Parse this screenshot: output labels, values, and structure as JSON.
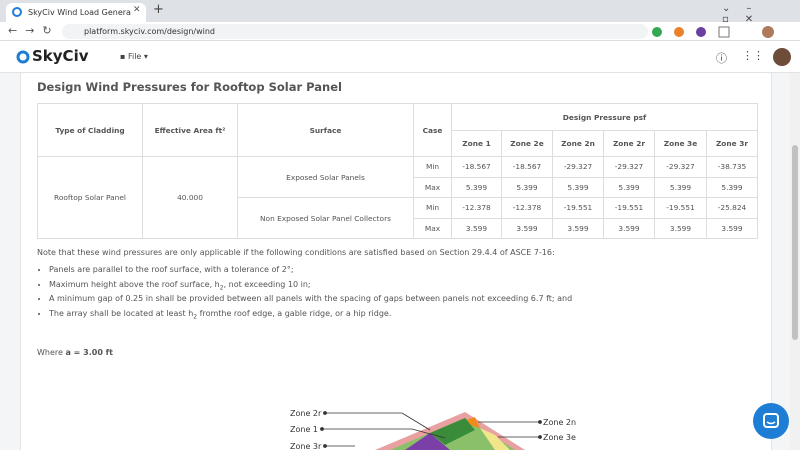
{
  "browser": {
    "tab_title": "SkyCiv Wind Load Genera",
    "url": "platform.skyciv.com/design/wind"
  },
  "app": {
    "logo": "SkyCiv",
    "menu": "File"
  },
  "section": {
    "title": "Design Wind Pressures for Rooftop Solar Panel"
  },
  "table": {
    "headers": {
      "type": "Type of Cladding",
      "area": "Effective Area ft²",
      "surface": "Surface",
      "case": "Case",
      "group": "Design Pressure psf",
      "zones": [
        "Zone 1",
        "Zone 2e",
        "Zone 2n",
        "Zone 2r",
        "Zone 3e",
        "Zone 3r"
      ]
    },
    "cladding": "Rooftop Solar Panel",
    "area": "40.000",
    "surfaces": [
      {
        "name": "Exposed Solar Panels",
        "rows": [
          {
            "case": "Min",
            "values": [
              "-18.567",
              "-18.567",
              "-29.327",
              "-29.327",
              "-29.327",
              "-38.735"
            ]
          },
          {
            "case": "Max",
            "values": [
              "5.399",
              "5.399",
              "5.399",
              "5.399",
              "5.399",
              "5.399"
            ]
          }
        ]
      },
      {
        "name": "Non Exposed Solar Panel Collectors",
        "rows": [
          {
            "case": "Min",
            "values": [
              "-12.378",
              "-12.378",
              "-19.551",
              "-19.551",
              "-19.551",
              "-25.824"
            ]
          },
          {
            "case": "Max",
            "values": [
              "3.599",
              "3.599",
              "3.599",
              "3.599",
              "3.599",
              "3.599"
            ]
          }
        ]
      }
    ]
  },
  "note": "Note that these wind pressures are only applicable if the following conditions are satisfied based on Section 29.4.4 of ASCE 7-16:",
  "bullets": [
    {
      "text": "Panels are parallel to the roof surface, with a tolerance of 2°;"
    },
    {
      "text": "Maximum height above the roof surface, h",
      "sub": "2",
      "after": ", not exceeding 10 in;"
    },
    {
      "text": "A minimum gap of 0.25 in shall be provided between all panels with the spacing of gaps between panels not exceeding 6.7 ft; and"
    },
    {
      "text": "The array shall be located at least h",
      "sub": "2",
      "after": " fromthe roof edge, a gable ridge, or a hip ridge."
    }
  ],
  "where": {
    "label": "Where",
    "value": "a = 3.00 ft"
  },
  "diagram": {
    "left_labels": [
      "Zone 2r",
      "Zone 1",
      "Zone 3r"
    ],
    "right_labels": [
      "Zone 2n",
      "Zone 3e"
    ]
  }
}
